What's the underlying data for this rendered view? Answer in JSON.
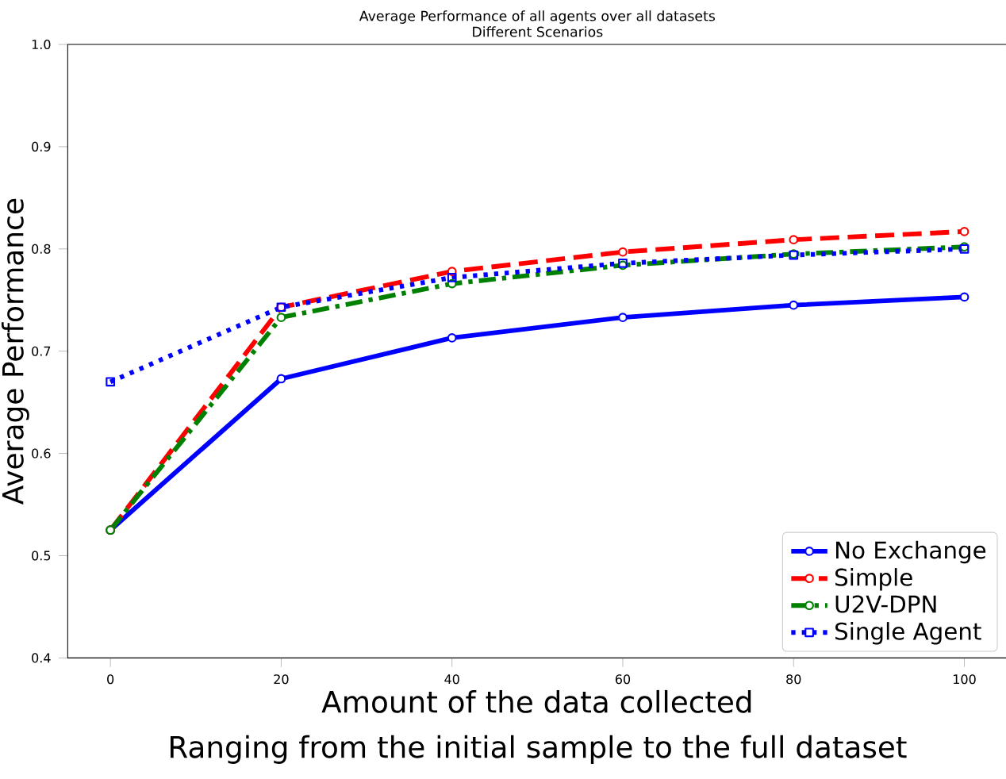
{
  "chart_data": {
    "type": "line",
    "title": "Average Performance of all agents over all datasets",
    "subtitle": "Different Scenarios",
    "xlabel": "Amount of the data collected",
    "annotations": [
      "Ranging from the initial sample to the full dataset"
    ],
    "ylabel": "Average Performance",
    "x": [
      0,
      20,
      40,
      60,
      80,
      100
    ],
    "series": [
      {
        "name": "No Exchange",
        "color": "#0000ff",
        "line_style": "solid",
        "marker": "circle",
        "values": [
          0.525,
          0.673,
          0.713,
          0.733,
          0.745,
          0.753
        ]
      },
      {
        "name": "Simple",
        "color": "#ff0000",
        "line_style": "dashed",
        "marker": "circle",
        "values": [
          0.525,
          0.743,
          0.778,
          0.797,
          0.809,
          0.817
        ]
      },
      {
        "name": "U2V-DPN",
        "color": "#008000",
        "line_style": "dashdot",
        "marker": "circle",
        "values": [
          0.525,
          0.733,
          0.766,
          0.784,
          0.795,
          0.802
        ]
      },
      {
        "name": "Single Agent",
        "color": "#0000ff",
        "line_style": "dotted",
        "marker": "square",
        "values": [
          0.67,
          0.743,
          0.772,
          0.786,
          0.794,
          0.8
        ]
      }
    ],
    "xlim": [
      -5,
      105
    ],
    "ylim": [
      0.4,
      1.0
    ],
    "xticks": [
      0,
      20,
      40,
      60,
      80,
      100
    ],
    "yticks": [
      {
        "value": 0.4,
        "label": "0.4"
      },
      {
        "value": 0.5,
        "label": "0.5"
      },
      {
        "value": 0.6,
        "label": "0.6"
      },
      {
        "value": 0.7,
        "label": "0.7"
      },
      {
        "value": 0.8,
        "label": "0.8"
      },
      {
        "value": 0.9,
        "label": "0.9"
      },
      {
        "value": 1.0,
        "label": "1.0"
      }
    ],
    "grid": false,
    "legend": "bottom right"
  }
}
